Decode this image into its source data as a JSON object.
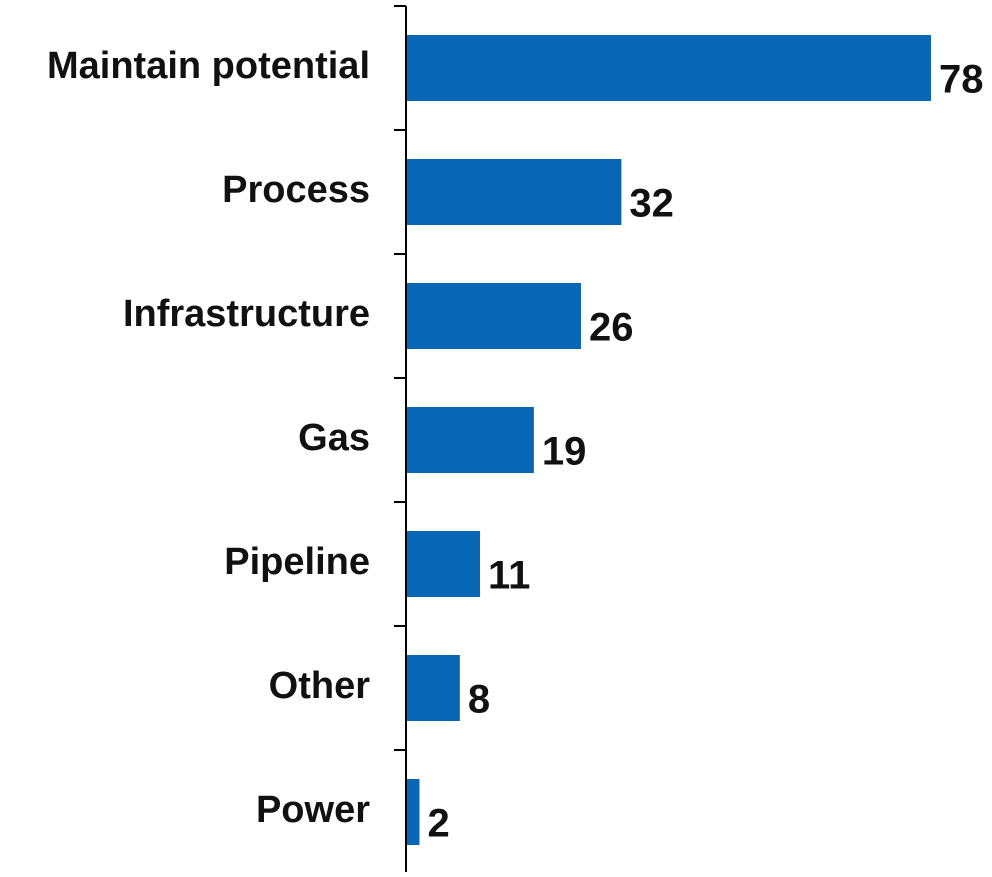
{
  "chart_data": {
    "type": "bar",
    "orientation": "horizontal",
    "categories": [
      "Maintain potential",
      "Process",
      "Infrastructure",
      "Gas",
      "Pipeline",
      "Other",
      "Power"
    ],
    "values": [
      78,
      32,
      26,
      19,
      11,
      8,
      2
    ],
    "title": "",
    "xlabel": "",
    "ylabel": "",
    "xlim": [
      0,
      78
    ],
    "grid": false,
    "legend": "none",
    "data_labels": true,
    "bar_color": "#0767B5",
    "axis_color": "#000000"
  }
}
